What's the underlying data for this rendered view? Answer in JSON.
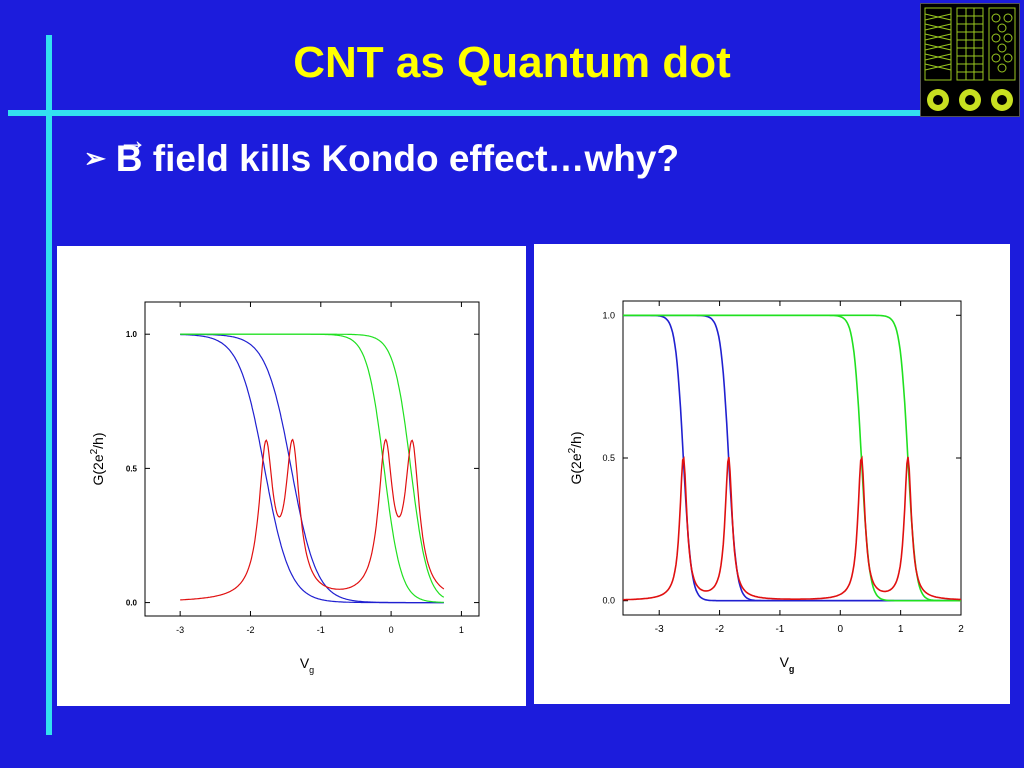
{
  "slide": {
    "title": "CNT as Quantum dot",
    "bullet_marker": "➢",
    "bullet_symbol": "B",
    "bullet_vector_arrow": "→",
    "bullet_text": " field kills Kondo effect…why?",
    "thumbnail_icon": "carbon-nanotube-models-icon"
  },
  "colors": {
    "background": "#1c1cdc",
    "accent_lines": "#33e0f0",
    "title": "#ffff00",
    "curve_blue": "#2020d0",
    "curve_green": "#20e020",
    "curve_red": "#e01010"
  },
  "chart_data": [
    {
      "type": "line",
      "xlabel": "V",
      "xlabel_sub": "g",
      "ylabel_main": "G(2e",
      "ylabel_sup": "2",
      "ylabel_end": "/h)",
      "xlim": [
        -3.5,
        1.25
      ],
      "ylim": [
        -0.05,
        1.12
      ],
      "xticks": [
        -3,
        -2,
        -1,
        0,
        1
      ],
      "xtick_labels": [
        "-3",
        "-2",
        "-1",
        "0",
        "1"
      ],
      "yticks": [
        0.0,
        0.5,
        1.0
      ],
      "ytick_labels": [
        "0.0",
        "0.5",
        "1.0"
      ],
      "x_range": [
        -3.0,
        0.75
      ],
      "series": [
        {
          "color_key": "curve_blue",
          "kind": "step",
          "center": -1.8,
          "width": 0.18
        },
        {
          "color_key": "curve_blue",
          "kind": "step",
          "center": -1.42,
          "width": 0.18
        },
        {
          "color_key": "curve_green",
          "kind": "step",
          "center": -0.1,
          "width": 0.12
        },
        {
          "color_key": "curve_green",
          "kind": "step",
          "center": 0.28,
          "width": 0.12
        },
        {
          "color_key": "curve_red",
          "kind": "peaks",
          "centers": [
            -1.78,
            -1.4,
            -0.08,
            0.3
          ],
          "peak_height": 0.55,
          "hwhm": 0.12
        }
      ]
    },
    {
      "type": "line",
      "xlabel": "V",
      "xlabel_sub": "g",
      "ylabel_main": "G(2e",
      "ylabel_sup": "2",
      "ylabel_end": "/h)",
      "xlim": [
        -3.6,
        2.0
      ],
      "ylim": [
        -0.05,
        1.05
      ],
      "xticks": [
        -3,
        -2,
        -1,
        0,
        1,
        2
      ],
      "xtick_labels": [
        "-3",
        "-2",
        "-1",
        "0",
        "1",
        "2"
      ],
      "yticks": [
        0.0,
        0.5,
        1.0
      ],
      "ytick_labels": [
        "0.0",
        "0.5",
        "1.0"
      ],
      "x_range": [
        -3.6,
        2.0
      ],
      "series": [
        {
          "color_key": "curve_blue",
          "kind": "step",
          "center": -2.6,
          "width": 0.065
        },
        {
          "color_key": "curve_blue",
          "kind": "step",
          "center": -1.85,
          "width": 0.065
        },
        {
          "color_key": "curve_green",
          "kind": "step",
          "center": 0.35,
          "width": 0.065
        },
        {
          "color_key": "curve_green",
          "kind": "step",
          "center": 1.12,
          "width": 0.065
        },
        {
          "color_key": "curve_red",
          "kind": "peaks",
          "centers": [
            -2.6,
            -1.85,
            0.35,
            1.12
          ],
          "peak_height": 0.5,
          "hwhm": 0.07
        }
      ]
    }
  ]
}
